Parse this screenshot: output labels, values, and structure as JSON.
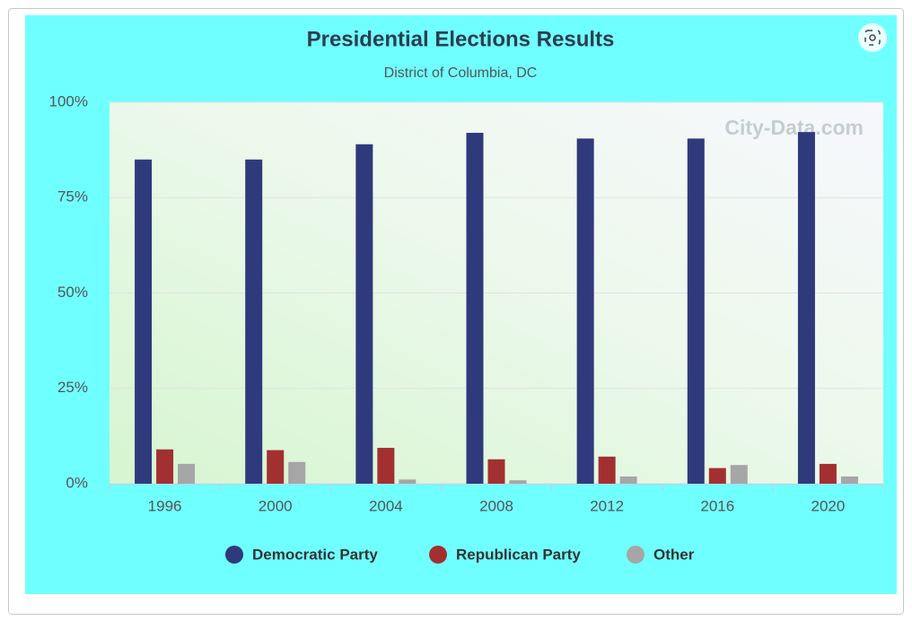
{
  "chart_data": {
    "type": "bar",
    "title": "Presidential Elections Results",
    "subtitle": "District of Columbia, DC",
    "watermark": "City-Data.com",
    "categories": [
      "1996",
      "2000",
      "2004",
      "2008",
      "2012",
      "2016",
      "2020"
    ],
    "series": [
      {
        "name": "Democratic Party",
        "color": "#2e3a7c",
        "values": [
          85,
          85,
          89,
          92,
          90.5,
          90.5,
          92.2
        ]
      },
      {
        "name": "Republican Party",
        "color": "#a33030",
        "values": [
          9,
          8.8,
          9.4,
          6.4,
          7.1,
          4.1,
          5.2
        ]
      },
      {
        "name": "Other",
        "color": "#a6a6a6",
        "values": [
          5.2,
          5.7,
          1.1,
          0.9,
          1.9,
          4.9,
          1.9
        ]
      }
    ],
    "ylim": [
      0,
      100
    ],
    "yticks": [
      {
        "value": 0,
        "label": "0%"
      },
      {
        "value": 25,
        "label": "25%"
      },
      {
        "value": 50,
        "label": "50%"
      },
      {
        "value": 75,
        "label": "75%"
      },
      {
        "value": 100,
        "label": "100%"
      }
    ],
    "grid": true,
    "legend": "bottom"
  }
}
